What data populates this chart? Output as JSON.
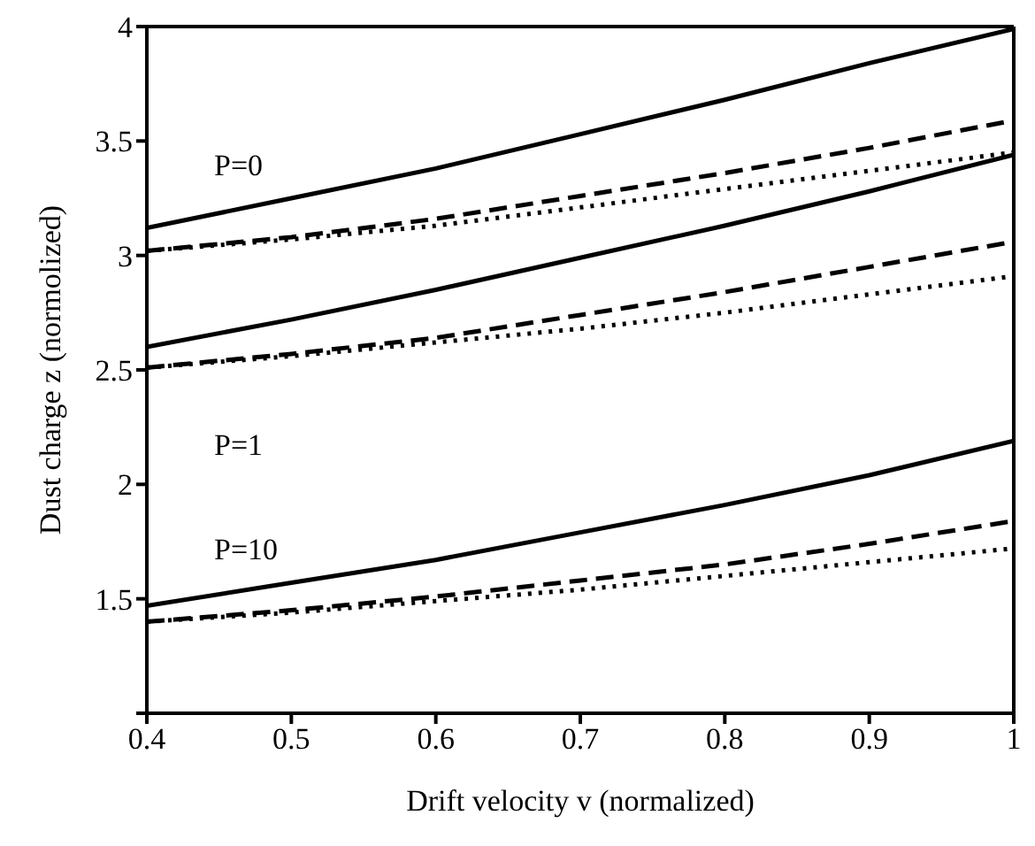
{
  "chart_data": {
    "type": "line",
    "xlabel": "Drift velocity v (normalized)",
    "ylabel": "Dust charge z (normolized)",
    "x": [
      0.4,
      0.5,
      0.6,
      0.7,
      0.8,
      0.9,
      1.0
    ],
    "xlim": [
      0.4,
      1
    ],
    "xticks": [
      0.4,
      0.5,
      0.6,
      0.7,
      0.8,
      0.9,
      1
    ],
    "ylim": [
      1,
      4
    ],
    "yticks": [
      {
        "value": 1,
        "label": null
      },
      1.5,
      2,
      2.5,
      3,
      3.5,
      4
    ],
    "marker": "none",
    "series": [
      {
        "color": "#000000",
        "line_style": "solid",
        "values": [
          3.12,
          3.25,
          3.38,
          3.53,
          3.68,
          3.84,
          3.99
        ]
      },
      {
        "color": "#000000",
        "line_style": "dashed",
        "values": [
          3.02,
          3.08,
          3.16,
          3.26,
          3.36,
          3.47,
          3.59
        ]
      },
      {
        "color": "#000000",
        "line_style": "dotted",
        "values": [
          3.02,
          3.07,
          3.13,
          3.21,
          3.29,
          3.37,
          3.45
        ]
      },
      {
        "color": "#000000",
        "line_style": "solid",
        "values": [
          2.6,
          2.72,
          2.85,
          2.99,
          3.13,
          3.28,
          3.44
        ]
      },
      {
        "color": "#000000",
        "line_style": "dashed",
        "values": [
          2.51,
          2.57,
          2.64,
          2.74,
          2.84,
          2.95,
          3.06
        ]
      },
      {
        "color": "#000000",
        "line_style": "dotted",
        "values": [
          2.51,
          2.56,
          2.62,
          2.68,
          2.75,
          2.83,
          2.91
        ]
      },
      {
        "color": "#000000",
        "line_style": "solid",
        "values": [
          1.47,
          1.57,
          1.67,
          1.79,
          1.91,
          2.04,
          2.19
        ]
      },
      {
        "color": "#000000",
        "line_style": "dashed",
        "values": [
          1.4,
          1.45,
          1.51,
          1.58,
          1.65,
          1.74,
          1.84
        ]
      },
      {
        "color": "#000000",
        "line_style": "dotted",
        "values": [
          1.4,
          1.44,
          1.49,
          1.54,
          1.6,
          1.66,
          1.72
        ]
      }
    ],
    "annotations": [
      "P=0",
      "P=1",
      "P=10"
    ]
  }
}
